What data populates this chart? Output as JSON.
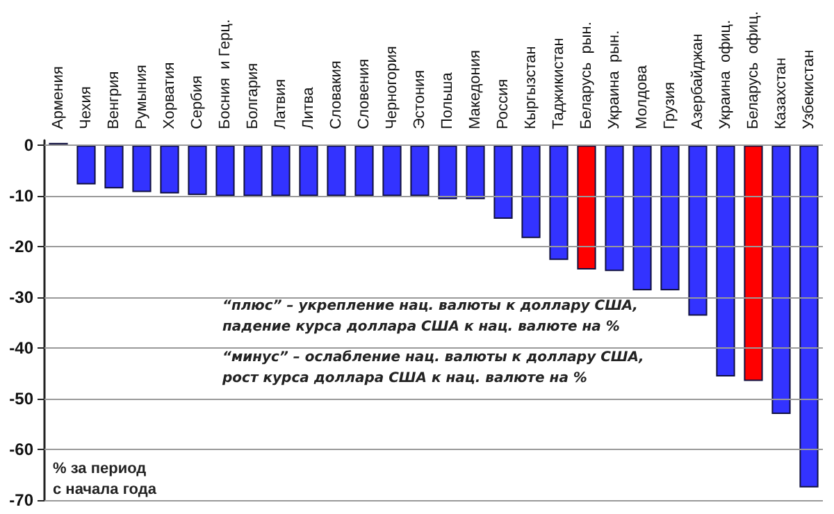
{
  "chart_data": {
    "type": "bar",
    "categories": [
      "Армения",
      "Чехия",
      "Венгрия",
      "Румыния",
      "Хорватия",
      "Сербия",
      "Босния  и Герц.",
      "Болгария",
      "Латвия",
      "Литва",
      "Словакия",
      "Словения",
      "Черногория",
      "Эстония",
      "Польша",
      "Македония",
      "Россия",
      "Кыргызстан",
      "Таджикистан",
      "Беларусь  рын.",
      "Украина  рын.",
      "Молдова",
      "Грузия",
      "Азербайджан",
      "Украина  офиц.",
      "Беларусь  офиц.",
      "Казахстан",
      "Узбекистан"
    ],
    "values": [
      0.5,
      -7.7,
      -8.5,
      -9.2,
      -9.5,
      -9.8,
      -10,
      -10,
      -10,
      -10,
      -10,
      -10,
      -10,
      -10,
      -10.6,
      -10.6,
      -14.5,
      -18.3,
      -22.6,
      -24.5,
      -24.8,
      -28.6,
      -28.6,
      -33.6,
      -45.6,
      -46.5,
      -53.0,
      -67.5
    ],
    "colors": [
      "#3333ff",
      "#3333ff",
      "#3333ff",
      "#3333ff",
      "#3333ff",
      "#3333ff",
      "#3333ff",
      "#3333ff",
      "#3333ff",
      "#3333ff",
      "#3333ff",
      "#3333ff",
      "#3333ff",
      "#3333ff",
      "#3333ff",
      "#3333ff",
      "#3333ff",
      "#3333ff",
      "#3333ff",
      "#ff0000",
      "#3333ff",
      "#3333ff",
      "#3333ff",
      "#3333ff",
      "#3333ff",
      "#ff0000",
      "#3333ff",
      "#3333ff"
    ],
    "ylim": [
      -70,
      1
    ],
    "yticks": [
      0,
      -10,
      -20,
      -30,
      -40,
      -50,
      -60,
      -70
    ],
    "ylabel": "% за период\nс начала года",
    "annotations": [
      "“плюс” – укрепление нац. валюты к доллару США,\nпадение курса доллара США к нац. валюте на %",
      "“минус” – ослабление нац. валюты к доллару США,\nрост курса доллара США к нац. валюте на %"
    ],
    "grid": "y"
  }
}
